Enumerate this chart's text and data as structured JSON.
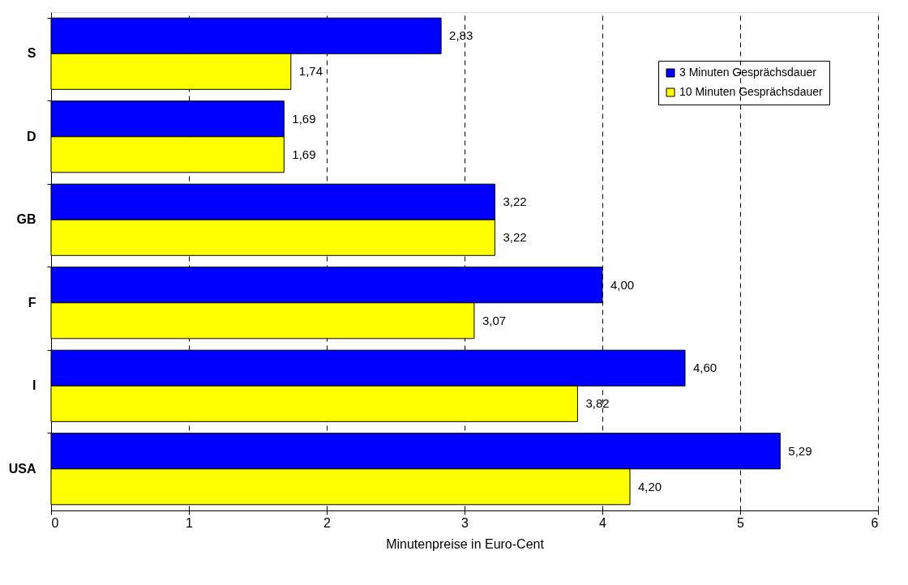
{
  "chart_data": {
    "type": "bar",
    "orientation": "horizontal",
    "xlabel": "Minutenpreise in Euro-Cent",
    "categories": [
      "S",
      "D",
      "GB",
      "F",
      "I",
      "USA"
    ],
    "series": [
      {
        "name": "3 Minuten Gesprächsdauer",
        "color": "#0000ff",
        "values": [
          2.83,
          1.69,
          3.22,
          4.0,
          4.6,
          5.29
        ],
        "value_labels": [
          "2,83",
          "1,69",
          "3,22",
          "4,00",
          "4,60",
          "5,29"
        ]
      },
      {
        "name": "10 Minuten Gesprächsdauer",
        "color": "#ffff00",
        "values": [
          1.74,
          1.69,
          3.22,
          3.07,
          3.82,
          4.2
        ],
        "value_labels": [
          "1,74",
          "1,69",
          "3,22",
          "3,07",
          "3,82",
          "4,20"
        ]
      }
    ],
    "xlim": [
      0,
      6
    ],
    "xticks": [
      0,
      1,
      2,
      3,
      4,
      5,
      6
    ],
    "grid": "x",
    "legend": "top right"
  }
}
